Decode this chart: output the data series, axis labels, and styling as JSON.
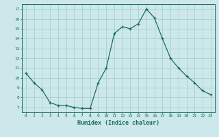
{
  "xlabel": "Humidex (Indice chaleur)",
  "ylabel": "",
  "bg_color": "#cce8ea",
  "grid_color": "#aacfd2",
  "line_color": "#1a6b5a",
  "xlim_min": -0.5,
  "xlim_max": 23.5,
  "ylim_min": 6.5,
  "ylim_max": 17.5,
  "yticks": [
    7,
    8,
    9,
    10,
    11,
    12,
    13,
    14,
    15,
    16,
    17
  ],
  "xticks": [
    0,
    1,
    2,
    3,
    4,
    5,
    6,
    7,
    8,
    9,
    10,
    11,
    12,
    13,
    14,
    15,
    16,
    17,
    18,
    19,
    20,
    21,
    22,
    23
  ],
  "x": [
    0,
    1,
    2,
    3,
    4,
    5,
    6,
    7,
    8,
    9,
    10,
    11,
    12,
    13,
    14,
    15,
    16,
    17,
    18,
    19,
    20,
    21,
    22,
    23
  ],
  "y": [
    10.5,
    9.5,
    8.8,
    7.5,
    7.2,
    7.2,
    7.0,
    6.9,
    6.9,
    9.5,
    11.0,
    14.5,
    15.2,
    15.0,
    15.5,
    17.0,
    16.1,
    14.0,
    12.0,
    11.0,
    10.2,
    9.5,
    8.7,
    8.3
  ]
}
